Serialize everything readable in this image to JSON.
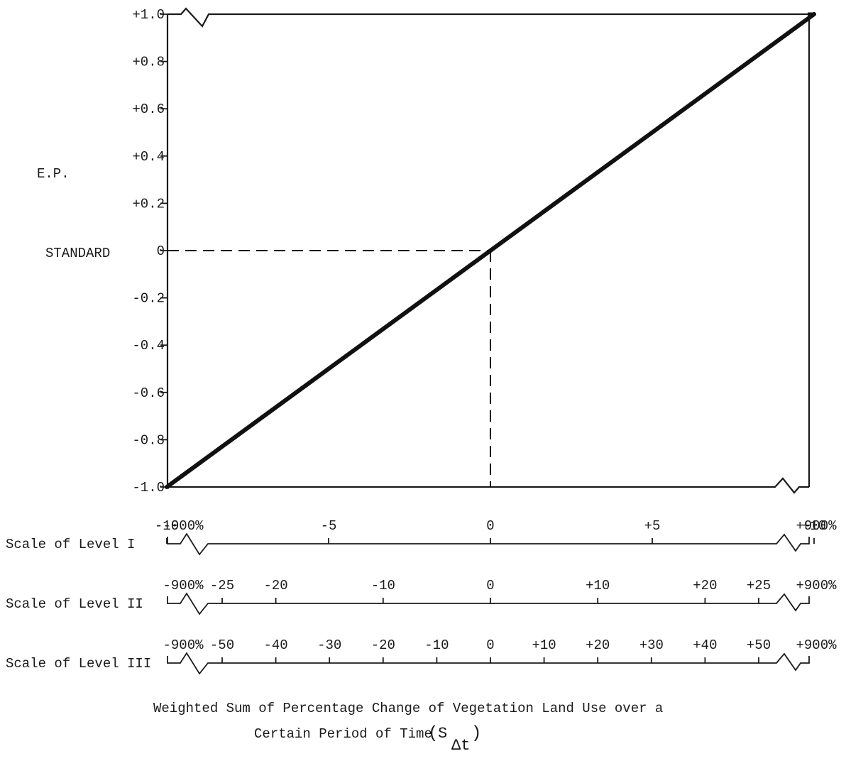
{
  "chart_data": {
    "type": "line",
    "ylabel": "E.P.",
    "standard_label": "STANDARD",
    "y_ticks": [
      "+1.0",
      "+0.8",
      "+0.6",
      "+0.4",
      "+0.2",
      "0",
      "-0.2",
      "-0.4",
      "-0.6",
      "-0.8",
      "-1.0"
    ],
    "ylim": [
      -1.0,
      1.0
    ],
    "xlim": [
      -10,
      10
    ],
    "series": [
      {
        "x": [
          -10,
          10
        ],
        "y": [
          -1.0,
          1.0
        ]
      }
    ],
    "flat_segments": [
      {
        "x": [
          -900,
          -10
        ],
        "y": -1.0
      },
      {
        "x": [
          10,
          900
        ],
        "y": 1.0
      }
    ],
    "reference_point": {
      "x": 0,
      "y": 0
    },
    "scales": [
      {
        "name": "Scale of Level I",
        "ticks": [
          {
            "label": "-900%",
            "value": -900
          },
          {
            "label": "-10",
            "value": -10
          },
          {
            "label": "-5",
            "value": -5
          },
          {
            "label": "0",
            "value": 0
          },
          {
            "label": "+5",
            "value": 5
          },
          {
            "label": "+10",
            "value": 10
          },
          {
            "label": "+900%",
            "value": 900
          }
        ]
      },
      {
        "name": "Scale of Level II",
        "ticks": [
          {
            "label": "-900%",
            "value": -900
          },
          {
            "label": "-25",
            "value": -25
          },
          {
            "label": "-20",
            "value": -20
          },
          {
            "label": "-10",
            "value": -10
          },
          {
            "label": "0",
            "value": 0
          },
          {
            "label": "+10",
            "value": 10
          },
          {
            "label": "+20",
            "value": 20
          },
          {
            "label": "+25",
            "value": 25
          },
          {
            "label": "+900%",
            "value": 900
          }
        ]
      },
      {
        "name": "Scale of Level III",
        "ticks": [
          {
            "label": "-900%",
            "value": -900
          },
          {
            "label": "-50",
            "value": -50
          },
          {
            "label": "-40",
            "value": -40
          },
          {
            "label": "-30",
            "value": -30
          },
          {
            "label": "-20",
            "value": -20
          },
          {
            "label": "-10",
            "value": -10
          },
          {
            "label": "0",
            "value": 0
          },
          {
            "label": "+10",
            "value": 10
          },
          {
            "label": "+20",
            "value": 20
          },
          {
            "label": "+30",
            "value": 30
          },
          {
            "label": "+40",
            "value": 40
          },
          {
            "label": "+50",
            "value": 50
          },
          {
            "label": "+900%",
            "value": 900
          }
        ]
      }
    ],
    "xlabel": "Weighted Sum of Percentage Change of Vegetation Land Use over a",
    "xlabel_line2": "Certain Period of Time",
    "xlabel_symbol": "S",
    "xlabel_subscript": "Δt"
  }
}
